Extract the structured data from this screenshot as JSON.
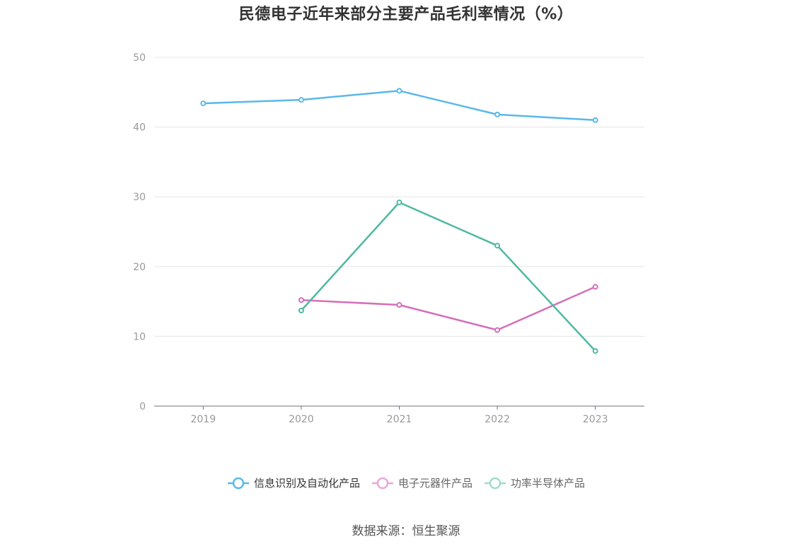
{
  "chart_data": {
    "type": "line",
    "title": "民德电子近年来部分主要产品毛利率情况（%）",
    "x": [
      "2019",
      "2020",
      "2021",
      "2022",
      "2023"
    ],
    "ylim": [
      0,
      50
    ],
    "yticks": [
      0,
      10,
      20,
      30,
      40,
      50
    ],
    "grid": true,
    "legend_position": "bottom",
    "series": [
      {
        "name": "信息识别及自动化产品",
        "color": "#5ab8e8",
        "values": [
          43.4,
          43.9,
          45.2,
          41.8,
          41.0
        ]
      },
      {
        "name": "电子元器件产品",
        "color": "#d46fb8",
        "values": [
          null,
          15.2,
          14.5,
          10.9,
          17.1
        ]
      },
      {
        "name": "功率半导体产品",
        "color": "#4fb9a0",
        "values": [
          null,
          13.7,
          29.2,
          23.0,
          7.9
        ]
      }
    ]
  },
  "legend": {
    "items": [
      {
        "label": "信息识别及自动化产品",
        "color": "#5ab8e8",
        "marker_color": "#5ab8e8"
      },
      {
        "label": "电子元器件产品",
        "color": "#d46fb8",
        "marker_color": "#e9a8d8"
      },
      {
        "label": "功率半导体产品",
        "color": "#4fb9a0",
        "marker_color": "#9edccb"
      }
    ]
  },
  "source": "数据来源：恒生聚源"
}
